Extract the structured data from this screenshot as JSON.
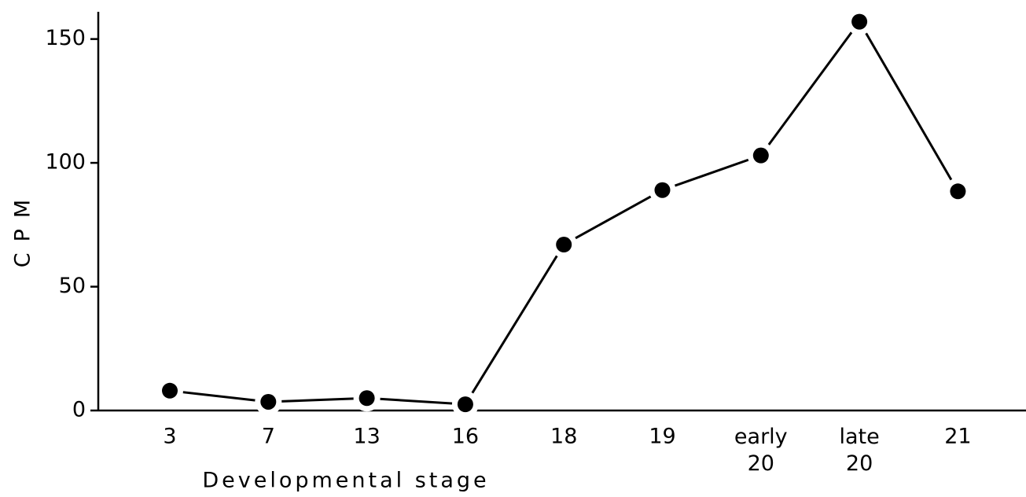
{
  "chart_data": {
    "type": "line",
    "x_label": "Developmental stage",
    "y_label": "CPM",
    "categories": [
      "3",
      "7",
      "13",
      "16",
      "18",
      "19",
      "early 20",
      "late 20",
      "21"
    ],
    "series": [
      {
        "name": "CPM",
        "color": "#000000",
        "values": [
          8,
          3.5,
          5,
          2.5,
          67,
          89,
          103,
          157,
          88.5
        ]
      }
    ],
    "ylim": [
      0,
      161
    ],
    "yticks": [
      0,
      50,
      100,
      150
    ],
    "grid": false
  }
}
